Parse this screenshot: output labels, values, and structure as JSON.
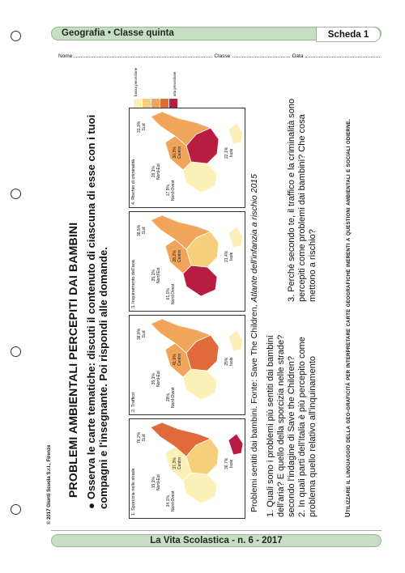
{
  "header": {
    "subject": "Geografia • Classe quinta",
    "sheet": "Scheda 1"
  },
  "namerow": {
    "nome": "Nome",
    "classe": "Classe",
    "data": "Data"
  },
  "title": "PROBLEMI AMBIENTALI PERCEPITI DAI BAMBINI",
  "instruction": "Osserva le carte tematiche: discuti il contenuto di ciascuna di esse con i tuoi compagni e l'insegnante. Poi rispondi alle domande.",
  "maps": [
    {
      "label": "1. Sporcizia nelle strade",
      "values": {
        "nord_ovest": "34,1%",
        "nord_est": "15,1%",
        "centro": "37,3%",
        "sud": "76,2%",
        "isole": "36,7%"
      },
      "region_labels": {
        "nord_ovest": "Nord-Ovest",
        "nord_est": "Nord-Est",
        "centro": "Centro",
        "sud": "Sud",
        "isole": "Isole"
      }
    },
    {
      "label": "2. Traffico",
      "values": {
        "nord_ovest": "28%",
        "nord_est": "35,1%",
        "centro": "41,9%",
        "sud": "38,8%",
        "isole": "25%"
      },
      "region_labels": {
        "nord_ovest": "Nord-Ovest",
        "nord_est": "Nord-Est",
        "centro": "Centro",
        "sud": "Sud",
        "isole": "Isole"
      }
    },
    {
      "label": "3. Inquinamento dell'aria",
      "values": {
        "nord_ovest": "61,1%",
        "nord_est": "35,1%",
        "centro": "28,2%",
        "sud": "38,5%",
        "isole": "21,4%"
      },
      "region_labels": {
        "nord_ovest": "Nord Ovest",
        "nord_est": "Nord Est",
        "centro": "Centro",
        "sud": "Sud",
        "isole": "Isole"
      }
    },
    {
      "label": "4. Rischio di criminalità",
      "values": {
        "nord_ovest": "17,9%",
        "nord_est": "28,1%",
        "centro": "30,3%",
        "sud": "31,3%",
        "isole": "22,1%"
      },
      "region_labels": {
        "nord_ovest": "Nord-Ovest",
        "nord_est": "Nord-Est",
        "centro": "Centro",
        "sud": "Sud",
        "isole": "Isole"
      }
    }
  ],
  "legend": {
    "low": "bassa percezione",
    "high": "alta percezione"
  },
  "colors": {
    "c1": "#fbf0b8",
    "c2": "#f7cf7a",
    "c3": "#f0a55a",
    "c4": "#e06a3a",
    "c5": "#b81c40"
  },
  "caption_a": "Problemi sentiti dai bambini. Fonte: Save The Children, ",
  "caption_b": "Atlante dell'infanzia a rischio 2015",
  "questions": {
    "q1": "1. Quali sono i problemi più sentiti dai bambini dell'aria? E quello della sporcizia nelle strade?",
    "q1b": "secondo l'indagine di Save the Children?",
    "q2": "2. In quali parti dell'Italia è più percepito come problema quello relativo all'inquinamento",
    "q3": "3. Perché secondo te, il traffico e la criminalità sono percepiti come problemi dai bambini? Che cosa mettono a rischio?"
  },
  "footer_note": "Utilizzare il linguaggio della geo-graficità per interpretare carte geografiche inerenti a questioni ambientali e sociali odierne.",
  "copyright": "© 2017 Giunti Scuola S.r.l., Firenze",
  "bottom": "La Vita Scolastica - n. 6 - 2017"
}
